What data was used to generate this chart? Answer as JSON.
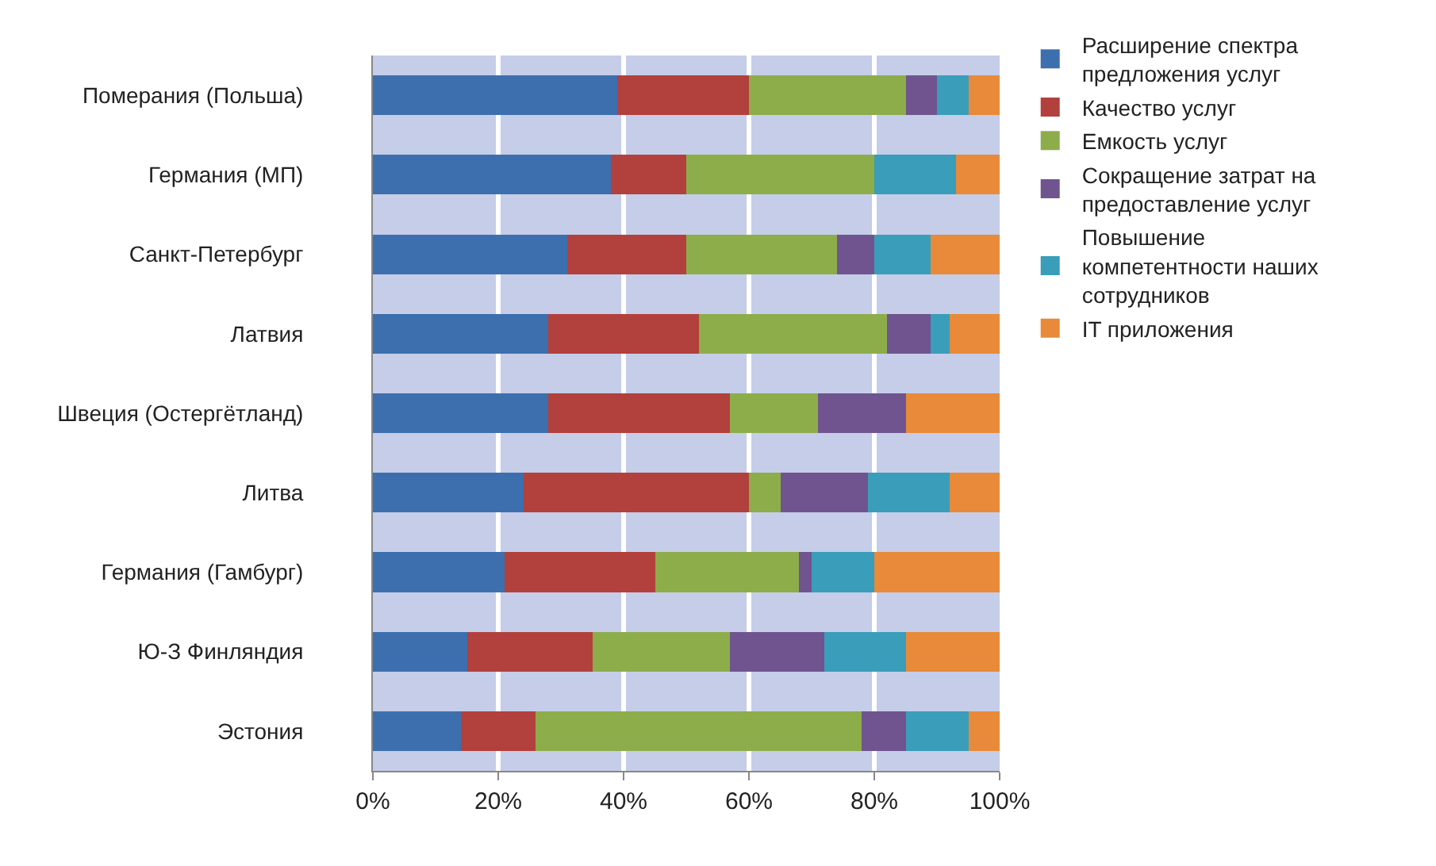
{
  "chart_data": {
    "type": "bar",
    "orientation": "horizontal",
    "stacked": true,
    "categories": [
      "Померания (Польша)",
      "Германия (МП)",
      "Санкт-Петербург",
      "Латвия",
      "Швеция (Остергётланд)",
      "Литва",
      "Германия (Гамбург)",
      "Ю-З Финляндия",
      "Эстония"
    ],
    "series": [
      {
        "name": "Расширение спектра предложения услуг",
        "color": "#3d6fae",
        "values": [
          39,
          38,
          31,
          28,
          28,
          24,
          21,
          15,
          14
        ]
      },
      {
        "name": "Качество услуг",
        "color": "#b2403d",
        "values": [
          21,
          12,
          19,
          24,
          29,
          36,
          24,
          20,
          12
        ]
      },
      {
        "name": "Емкость услуг",
        "color": "#8dad4b",
        "values": [
          25,
          30,
          24,
          30,
          14,
          5,
          23,
          22,
          52
        ]
      },
      {
        "name": "Сокращение затрат на предоставление услуг",
        "color": "#70548f",
        "values": [
          5,
          0,
          6,
          7,
          14,
          14,
          2,
          15,
          7
        ]
      },
      {
        "name": "Повышение компетентности наших сотрудников",
        "color": "#3a9dba",
        "values": [
          5,
          13,
          9,
          3,
          0,
          13,
          10,
          13,
          10
        ]
      },
      {
        "name": "IT приложения",
        "color": "#e88a3a",
        "values": [
          5,
          7,
          11,
          8,
          15,
          8,
          20,
          15,
          5
        ]
      }
    ],
    "xlim": [
      0,
      100
    ],
    "xticks": [
      {
        "value": 0,
        "label": "0%"
      },
      {
        "value": 20,
        "label": "20%"
      },
      {
        "value": 40,
        "label": "40%"
      },
      {
        "value": 60,
        "label": "60%"
      },
      {
        "value": 80,
        "label": "80%"
      },
      {
        "value": 100,
        "label": "100%"
      }
    ],
    "grid": "x",
    "legend": "right"
  }
}
